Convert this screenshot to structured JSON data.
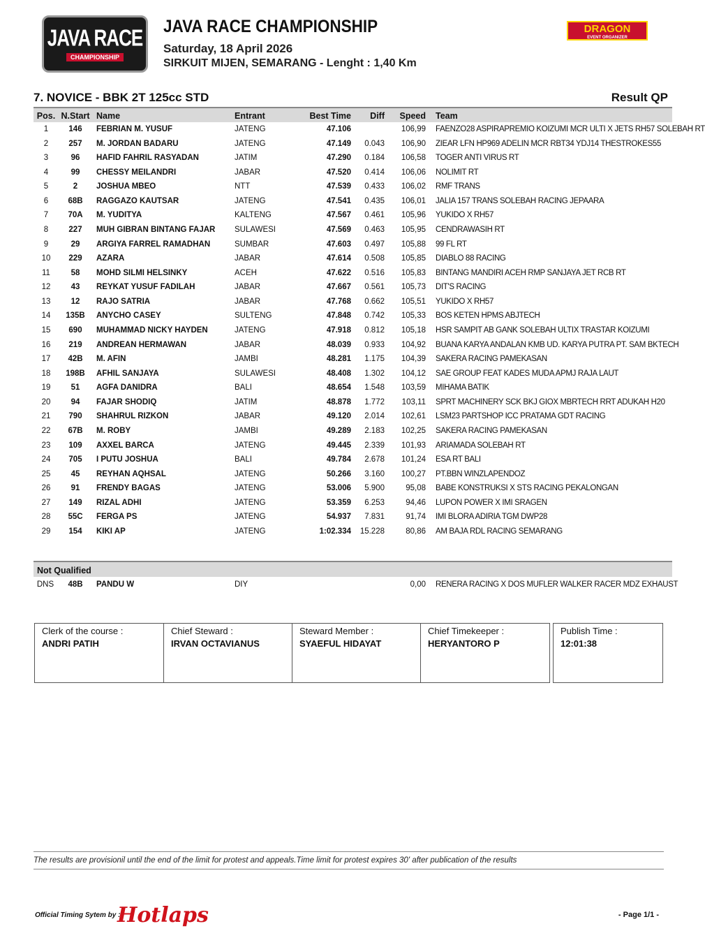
{
  "header": {
    "logo_text": "JAVA RACE",
    "logo_sub": "CHAMPIONSHIP",
    "title": "JAVA RACE CHAMPIONSHIP",
    "date": "Saturday, 18 April 2026",
    "venue": "SIRKUIT MIJEN, SEMARANG - Lenght : 1,40 Km",
    "sponsor": "DRAGON",
    "sponsor_sub": "EVENT ORGANIZER"
  },
  "class_title": "7. NOVICE - BBK 2T 125cc STD",
  "result_type": "Result QP",
  "columns": [
    "Pos.",
    "N.Start",
    "Name",
    "Entrant",
    "Best Time",
    "Diff",
    "Speed",
    "Team"
  ],
  "rows": [
    [
      "1",
      "146",
      "FEBRIAN M. YUSUF",
      "JATENG",
      "47.106",
      "",
      "106,99",
      "FAENZO28 ASPIRAPREMIO KOIZUMI MCR ULTI X JETS RH57 SOLEBAH RT"
    ],
    [
      "2",
      "257",
      "M. JORDAN BADARU",
      "JATENG",
      "47.149",
      "0.043",
      "106,90",
      "ZIEAR LFN HP969 ADELIN MCR RBT34 YDJ14 THESTROKES55"
    ],
    [
      "3",
      "96",
      "HAFID FAHRIL RASYADAN",
      "JATIM",
      "47.290",
      "0.184",
      "106,58",
      "TOGER ANTI VIRUS RT"
    ],
    [
      "4",
      "99",
      "CHESSY MEILANDRI",
      "JABAR",
      "47.520",
      "0.414",
      "106,06",
      "NOLIMIT RT"
    ],
    [
      "5",
      "2",
      "JOSHUA MBEO",
      "NTT",
      "47.539",
      "0.433",
      "106,02",
      "RMF TRANS"
    ],
    [
      "6",
      "68B",
      "RAGGAZO KAUTSAR",
      "JATENG",
      "47.541",
      "0.435",
      "106,01",
      "JALIA 157 TRANS SOLEBAH RACING JEPAARA"
    ],
    [
      "7",
      "70A",
      "M. YUDITYA",
      "KALTENG",
      "47.567",
      "0.461",
      "105,96",
      "YUKIDO X RH57"
    ],
    [
      "8",
      "227",
      "MUH GIBRAN BINTANG FAJAR",
      "SULAWESI",
      "47.569",
      "0.463",
      "105,95",
      "CENDRAWASIH RT"
    ],
    [
      "9",
      "29",
      "ARGIYA FARREL RAMADHAN",
      "SUMBAR",
      "47.603",
      "0.497",
      "105,88",
      "99 FL RT"
    ],
    [
      "10",
      "229",
      "AZARA",
      "JABAR",
      "47.614",
      "0.508",
      "105,85",
      "DIABLO 88 RACING"
    ],
    [
      "11",
      "58",
      "MOHD SILMI HELSINKY",
      "ACEH",
      "47.622",
      "0.516",
      "105,83",
      "BINTANG MANDIRI ACEH RMP SANJAYA JET RCB RT"
    ],
    [
      "12",
      "43",
      "REYKAT YUSUF FADILAH",
      "JABAR",
      "47.667",
      "0.561",
      "105,73",
      "DIT'S RACING"
    ],
    [
      "13",
      "12",
      "RAJO SATRIA",
      "JABAR",
      "47.768",
      "0.662",
      "105,51",
      "YUKIDO X RH57"
    ],
    [
      "14",
      "135B",
      "ANYCHO CASEY",
      "SULTENG",
      "47.848",
      "0.742",
      "105,33",
      "BOS KETEN HPMS ABJTECH"
    ],
    [
      "15",
      "690",
      "MUHAMMAD NICKY HAYDEN",
      "JATENG",
      "47.918",
      "0.812",
      "105,18",
      "HSR SAMPIT AB GANK SOLEBAH ULTIX TRASTAR KOIZUMI"
    ],
    [
      "16",
      "219",
      "ANDREAN HERMAWAN",
      "JABAR",
      "48.039",
      "0.933",
      "104,92",
      "BUANA KARYA ANDALAN KMB UD. KARYA PUTRA PT. SAM BKTECH"
    ],
    [
      "17",
      "42B",
      "M. AFIN",
      "JAMBI",
      "48.281",
      "1.175",
      "104,39",
      "SAKERA RACING PAMEKASAN"
    ],
    [
      "18",
      "198B",
      "AFHIL SANJAYA",
      "SULAWESI",
      "48.408",
      "1.302",
      "104,12",
      "SAE GROUP FEAT KADES MUDA APMJ RAJA LAUT"
    ],
    [
      "19",
      "51",
      "AGFA DANIDRA",
      "BALI",
      "48.654",
      "1.548",
      "103,59",
      "MIHAMA BATIK"
    ],
    [
      "20",
      "94",
      "FAJAR SHODIQ",
      "JATIM",
      "48.878",
      "1.772",
      "103,11",
      "SPRT MACHINERY SCK BKJ GIOX MBRTECH RRT ADUKAH H20"
    ],
    [
      "21",
      "790",
      "SHAHRUL RIZKON",
      "JABAR",
      "49.120",
      "2.014",
      "102,61",
      "LSM23 PARTSHOP ICC PRATAMA GDT RACING"
    ],
    [
      "22",
      "67B",
      "M. ROBY",
      "JAMBI",
      "49.289",
      "2.183",
      "102,25",
      "SAKERA RACING PAMEKASAN"
    ],
    [
      "23",
      "109",
      "AXXEL BARCA",
      "JATENG",
      "49.445",
      "2.339",
      "101,93",
      "ARIAMADA SOLEBAH RT"
    ],
    [
      "24",
      "705",
      "I PUTU JOSHUA",
      "BALI",
      "49.784",
      "2.678",
      "101,24",
      "ESA RT BALI"
    ],
    [
      "25",
      "45",
      "REYHAN AQHSAL",
      "JATENG",
      "50.266",
      "3.160",
      "100,27",
      "PT.BBN WINZLAPENDOZ"
    ],
    [
      "26",
      "91",
      "FRENDY BAGAS",
      "JATENG",
      "53.006",
      "5.900",
      "95,08",
      "BABE KONSTRUKSI X STS RACING PEKALONGAN"
    ],
    [
      "27",
      "149",
      "RIZAL ADHI",
      "JATENG",
      "53.359",
      "6.253",
      "94,46",
      "LUPON POWER X IMI SRAGEN"
    ],
    [
      "28",
      "55C",
      "FERGA PS",
      "JATENG",
      "54.937",
      "7.831",
      "91,74",
      "IMI BLORA ADIRIA TGM DWP28"
    ],
    [
      "29",
      "154",
      "KIKI AP",
      "JATENG",
      "1:02.334",
      "15.228",
      "80,86",
      "AM BAJA RDL RACING SEMARANG"
    ]
  ],
  "not_qualified": {
    "title": "Not Qualified",
    "rows": [
      [
        "DNS",
        "48B",
        "PANDU W",
        "DIY",
        "",
        "",
        "0,00",
        "RENERA RACING X DOS MUFLER WALKER RACER MDZ EXHAUST"
      ]
    ]
  },
  "officials": [
    {
      "label": "Clerk of the course :",
      "value": "ANDRI PATIH"
    },
    {
      "label": "Chief Steward :",
      "value": "IRVAN OCTAVIANUS"
    },
    {
      "label": "Steward Member :",
      "value": "SYAEFUL HIDAYAT"
    },
    {
      "label": "Chief Timekeeper :",
      "value": "HERYANTORO P"
    },
    {
      "label": "Publish Time :",
      "value": "12:01:38"
    }
  ],
  "footer": {
    "note": "The results are provisionil until the end of the limit for protest and appeals.Time limit for protest expires 30' after publication of the results",
    "timing_label": "Official Timing Sytem by :",
    "timing_brand": "Hotlaps",
    "page": "- Page 1/1 -"
  }
}
